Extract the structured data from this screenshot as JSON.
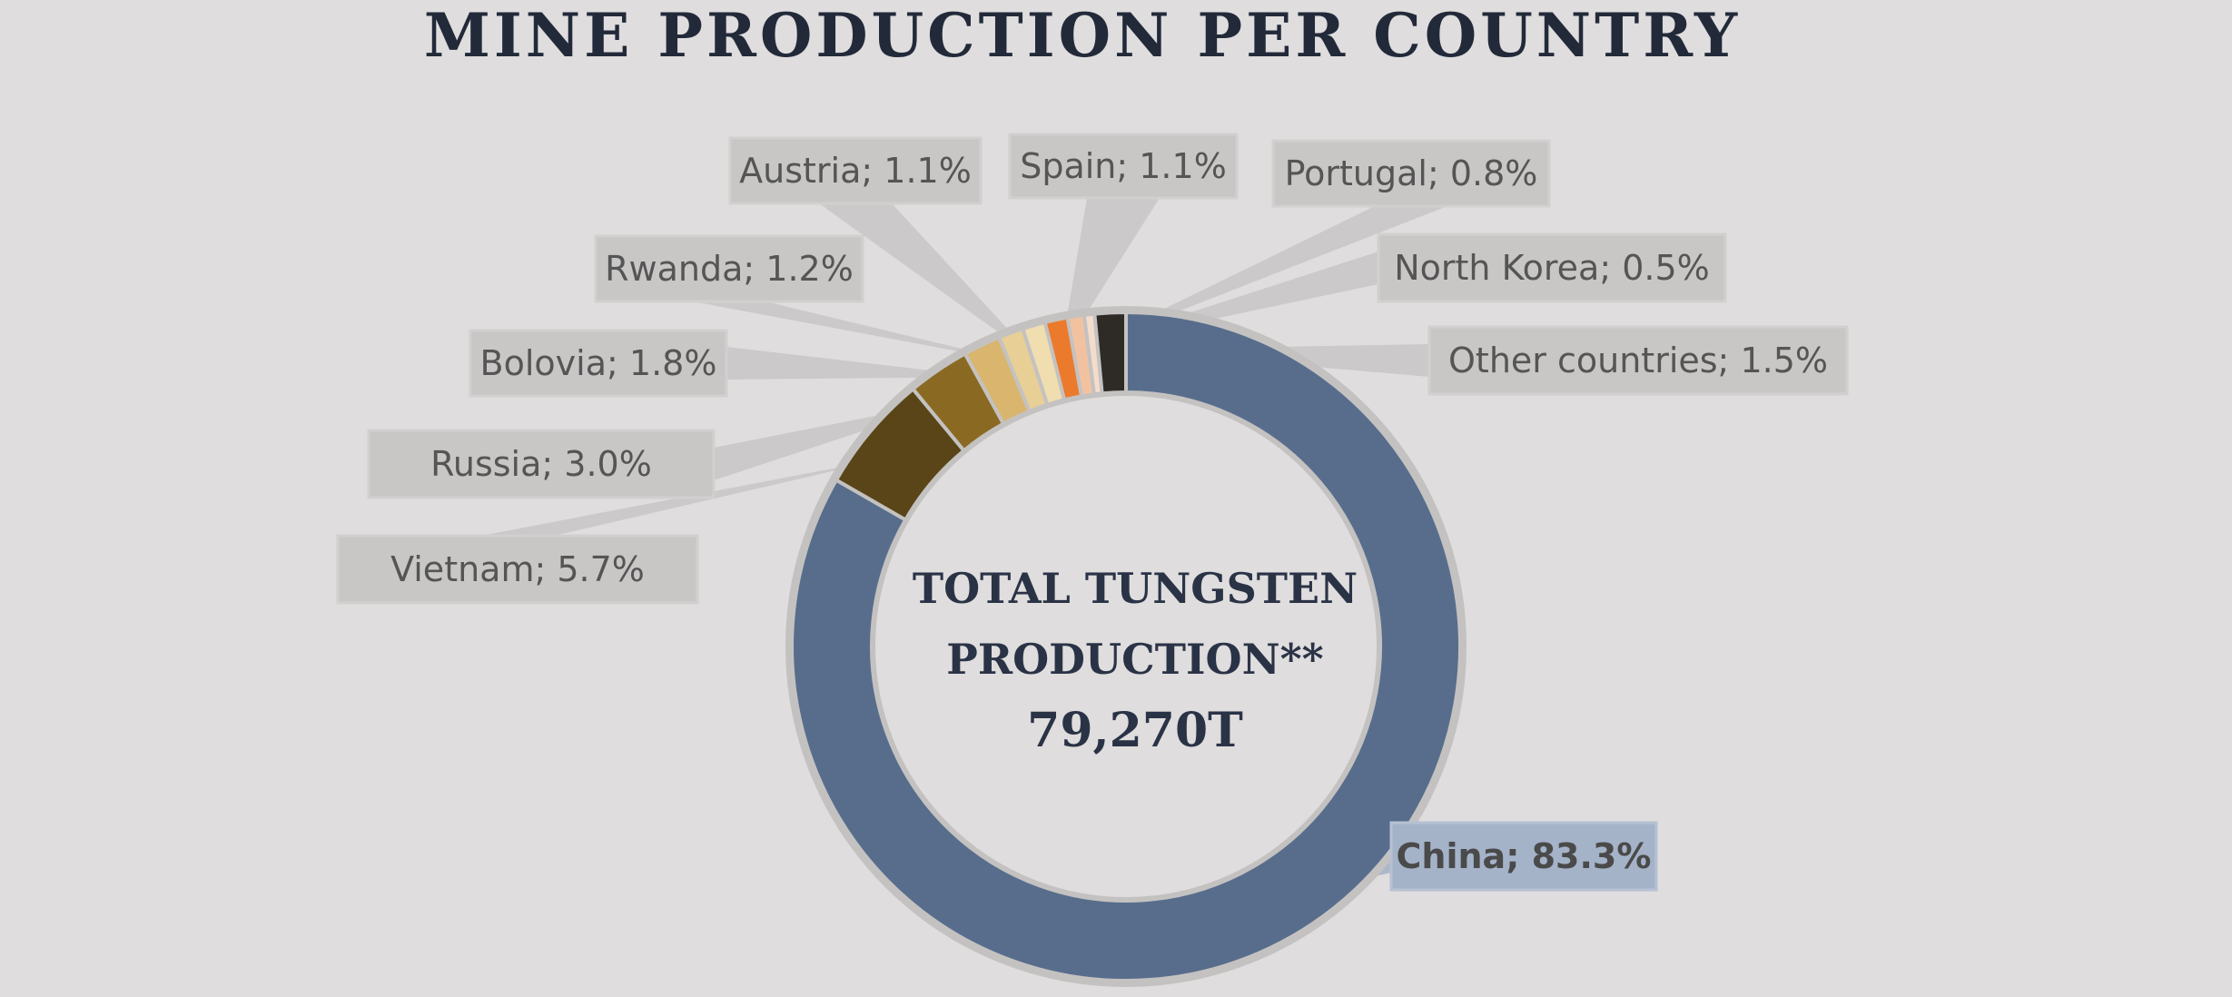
{
  "chart_data": {
    "type": "pie",
    "title": "MINE PRODUCTION PER COUNTRY",
    "center_label": [
      "TOTAL TUNGSTEN",
      "PRODUCTION**",
      "79,270T"
    ],
    "slices": [
      {
        "name": "China",
        "value": 83.3,
        "label": "China; 83.3%",
        "color": "#586d8c"
      },
      {
        "name": "Vietnam",
        "value": 5.7,
        "label": "Vietnam; 5.7%",
        "color": "#5a4518"
      },
      {
        "name": "Russia",
        "value": 3.0,
        "label": "Russia; 3.0%",
        "color": "#8a6a22"
      },
      {
        "name": "Bolovia",
        "value": 1.8,
        "label": "Bolovia; 1.8%",
        "color": "#d9b56e"
      },
      {
        "name": "Rwanda",
        "value": 1.2,
        "label": "Rwanda; 1.2%",
        "color": "#e8cf95"
      },
      {
        "name": "Austria",
        "value": 1.1,
        "label": "Austria; 1.1%",
        "color": "#f0ddb0"
      },
      {
        "name": "Spain",
        "value": 1.1,
        "label": "Spain; 1.1%",
        "color": "#ec7a2c"
      },
      {
        "name": "Portugal",
        "value": 0.8,
        "label": "Portugal; 0.8%",
        "color": "#f2c2a0"
      },
      {
        "name": "North Korea",
        "value": 0.5,
        "label": "North Korea; 0.5%",
        "color": "#f4dccb"
      },
      {
        "name": "Other countries",
        "value": 1.5,
        "label": "Other countries; 1.5%",
        "color": "#2e2b27"
      }
    ],
    "highlight": "China",
    "colors": {
      "background": "#dfdddd",
      "label_box": "#c9c7c6",
      "label_box_highlight": "#a5b3c9",
      "ring_border": "#c4c2c1"
    }
  }
}
